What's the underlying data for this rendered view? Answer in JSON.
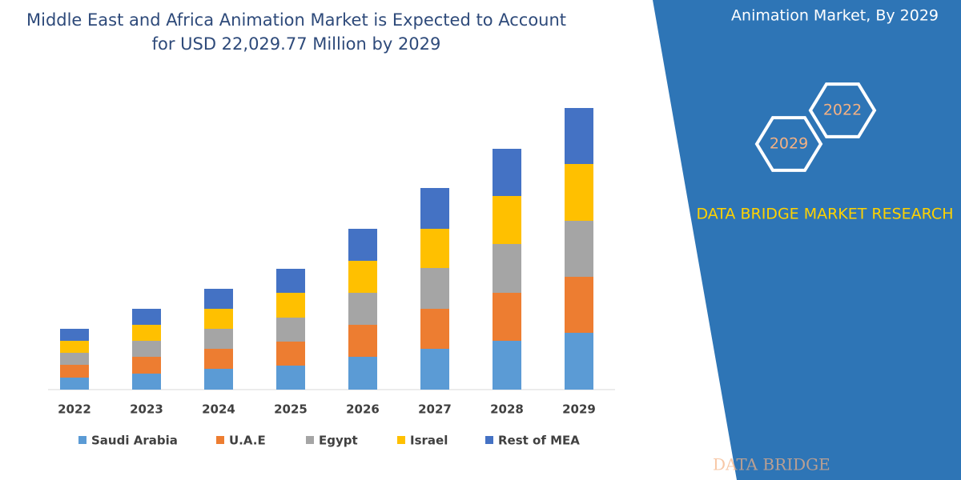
{
  "chart_data": {
    "type": "stacked-bar",
    "title": "Middle East and Africa Animation Market is Expected to Account for USD 22,029.77 Million by 2029",
    "categories": [
      "2022",
      "2023",
      "2024",
      "2025",
      "2026",
      "2027",
      "2028",
      "2029"
    ],
    "series": [
      {
        "name": "Saudi Arabia",
        "color": "#5b9bd5",
        "values": [
          15,
          20,
          26,
          30,
          41,
          51,
          61,
          71
        ]
      },
      {
        "name": "U.A.E",
        "color": "#ed7d31",
        "values": [
          16,
          21,
          25,
          30,
          40,
          50,
          60,
          70
        ]
      },
      {
        "name": "Egypt",
        "color": "#a5a5a5",
        "values": [
          15,
          20,
          25,
          30,
          40,
          51,
          61,
          70
        ]
      },
      {
        "name": "Israel",
        "color": "#ffc000",
        "values": [
          15,
          20,
          25,
          31,
          40,
          49,
          60,
          71
        ]
      },
      {
        "name": "Rest of MEA",
        "color": "#4472c4",
        "values": [
          15,
          20,
          25,
          30,
          40,
          51,
          59,
          70
        ]
      }
    ]
  },
  "panel": {
    "heading": "Animation Market, By 2029",
    "hexagons": [
      "2022",
      "2029"
    ],
    "brand": "DATA BRIDGE MARKET RESEARCH",
    "logo": "DATA BRIDGE"
  }
}
